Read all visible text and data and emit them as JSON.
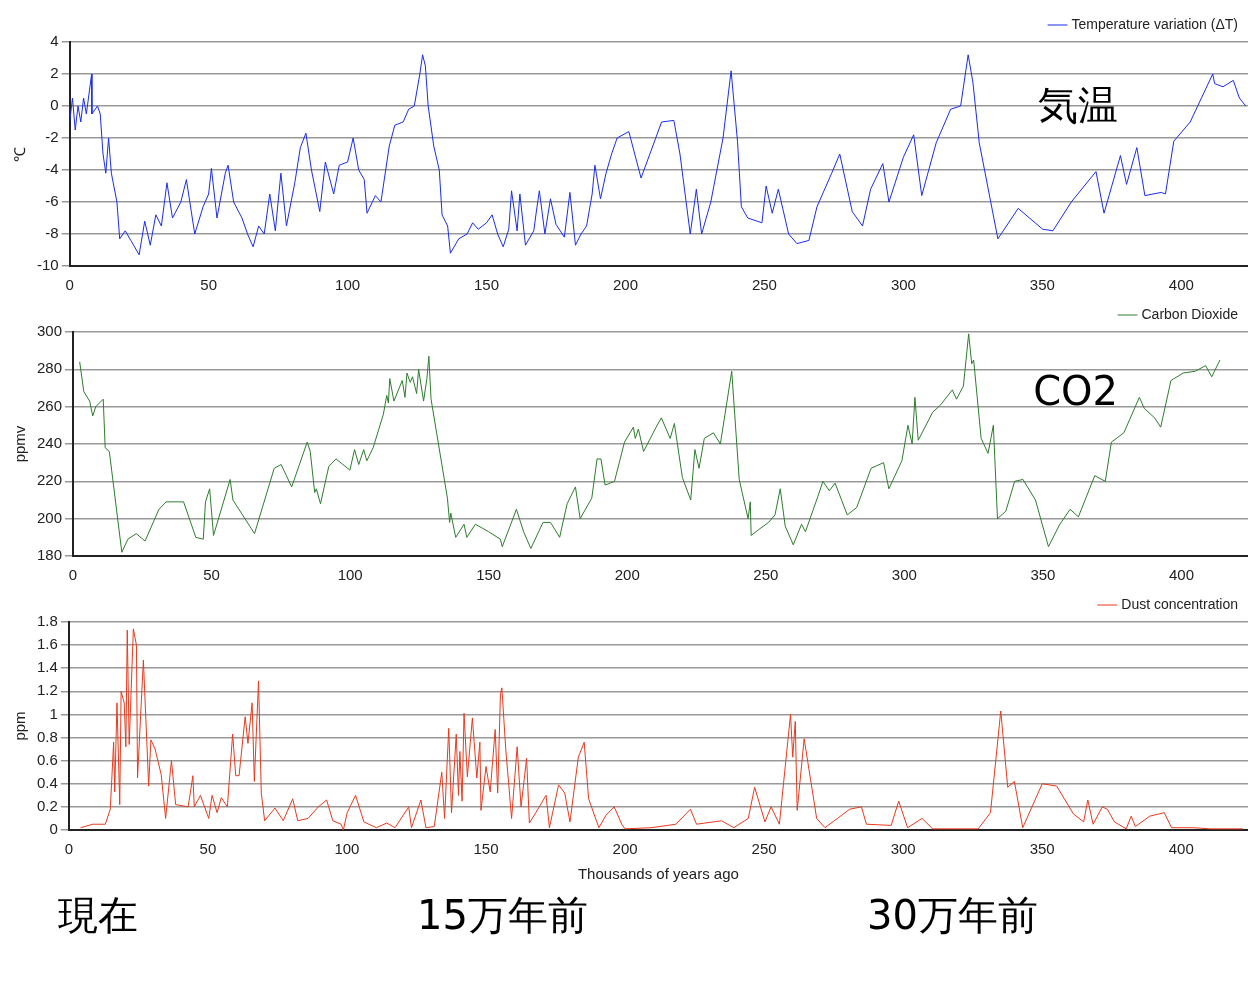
{
  "chart_data": [
    {
      "type": "line",
      "ylabel": "℃",
      "legend": "top right",
      "grid": "y",
      "xlim": [
        0,
        424
      ],
      "xticks": [
        0,
        50,
        100,
        150,
        200,
        250,
        300,
        350,
        400
      ],
      "ylim": [
        -10,
        4
      ],
      "yticks": [
        -10,
        -8,
        -6,
        -4,
        -2,
        0,
        2,
        4
      ],
      "annotations": [
        "気温"
      ],
      "x": [
        0,
        1,
        2,
        3,
        4,
        5,
        6,
        7.9,
        8,
        10,
        11,
        12,
        13,
        14,
        15,
        17,
        18,
        20,
        22,
        25,
        27,
        29,
        31,
        33,
        35,
        37,
        40,
        42,
        45,
        48,
        50,
        51,
        53,
        56,
        57,
        59,
        62,
        64,
        66,
        68,
        70,
        72,
        74,
        76,
        78,
        81,
        83,
        85,
        87,
        90,
        92,
        95,
        97,
        100,
        102,
        104,
        106,
        107,
        110,
        112,
        115,
        117,
        120,
        122,
        124,
        126,
        127,
        128,
        129,
        131,
        133,
        134,
        136,
        137,
        140,
        143,
        145,
        147,
        150,
        152,
        154,
        156,
        158,
        159,
        161,
        162,
        164,
        167,
        168,
        169,
        171,
        173,
        175,
        178,
        180,
        182,
        184,
        186,
        188,
        189,
        191,
        193,
        195,
        197,
        201.2,
        205.6,
        213,
        217.4,
        219.6,
        223.3,
        225.5,
        227.4,
        230.7,
        235.1,
        238,
        240.3,
        241.7,
        244,
        249.1,
        250.6,
        252.8,
        255,
        258.7,
        261.7,
        266,
        268.9,
        274.2,
        277.1,
        281.6,
        285.3,
        288.2,
        292.6,
        294.8,
        300,
        303.7,
        306.6,
        311.8,
        317,
        320.6,
        323.3,
        325,
        327.3,
        334,
        341.3,
        350.1,
        353.8,
        360.4,
        369.3,
        372.2,
        378.1,
        380.3,
        384,
        386.9,
        392.8,
        394.3,
        397.3,
        403.2,
        411.3,
        412,
        415,
        418.7,
        420.9,
        423.2
      ],
      "series": [
        {
          "name": "Temperature variation (ΔT)",
          "color": "#1a2cf0",
          "values": [
            -1,
            0.5,
            -1.5,
            0,
            -1,
            0.5,
            -0.5,
            2,
            -0.5,
            0,
            -0.5,
            -3,
            -4.2,
            -2,
            -4.2,
            -6,
            -8.3,
            -7.8,
            -8.4,
            -9.3,
            -7.2,
            -8.7,
            -6.8,
            -7.5,
            -4.8,
            -7,
            -6,
            -4.6,
            -8,
            -6.3,
            -5.5,
            -3.9,
            -7,
            -4.2,
            -3.7,
            -6,
            -7,
            -8,
            -8.8,
            -7.5,
            -8,
            -5.5,
            -7.8,
            -4.2,
            -7.5,
            -4.8,
            -2.6,
            -1.7,
            -4,
            -6.6,
            -3.5,
            -5.5,
            -3.7,
            -3.5,
            -2,
            -4,
            -4.6,
            -6.7,
            -5.6,
            -6,
            -2.5,
            -1.2,
            -1,
            -0.2,
            0,
            2,
            3.2,
            2.5,
            0,
            -2.5,
            -4,
            -6.8,
            -7.5,
            -9.2,
            -8.3,
            -8,
            -7.3,
            -7.7,
            -7.3,
            -6.8,
            -8,
            -8.8,
            -7.7,
            -5.3,
            -7.8,
            -5.5,
            -8.7,
            -7.8,
            -6.5,
            -5.3,
            -8,
            -5.8,
            -7.4,
            -8.2,
            -5.4,
            -8.7,
            -8,
            -7.5,
            -5.5,
            -3.7,
            -5.8,
            -4.2,
            -3,
            -2,
            -1.6,
            -4.5,
            -1,
            -0.9,
            -3,
            -8,
            -5.2,
            -8,
            -6,
            -2,
            2.2,
            -2.2,
            -6.3,
            -7,
            -7.3,
            -5,
            -6.7,
            -5.2,
            -8,
            -8.6,
            -8.4,
            -6.3,
            -4.2,
            -3,
            -6.6,
            -7.5,
            -5.2,
            -3.6,
            -6,
            -3.2,
            -1.8,
            -5.6,
            -2.3,
            -0.2,
            0,
            3.2,
            1.5,
            -2.3,
            -8.3,
            -6.4,
            -7.7,
            -7.8,
            -6,
            -4.1,
            -6.7,
            -3.1,
            -4.9,
            -2.6,
            -5.6,
            -5.4,
            -5.5,
            -2.2,
            -1,
            2,
            1.4,
            1.2,
            1.6,
            0.5,
            0
          ]
        }
      ]
    },
    {
      "type": "line",
      "ylabel": "ppmv",
      "legend": "top right",
      "grid": "y",
      "xlim": [
        0,
        424
      ],
      "xticks": [
        0,
        50,
        100,
        150,
        200,
        250,
        300,
        350,
        400
      ],
      "ylim": [
        180,
        300
      ],
      "yticks": [
        180,
        200,
        220,
        240,
        260,
        280,
        300
      ],
      "annotations": [
        "CO2"
      ],
      "x": [
        2.4,
        3.9,
        6,
        7.1,
        8.2,
        10.9,
        11.6,
        13.1,
        17.6,
        19.8,
        22.8,
        26,
        31,
        33.6,
        39.9,
        44.3,
        47,
        47.8,
        49.3,
        50.7,
        56.7,
        57.7,
        65.5,
        72.6,
        75.1,
        78.9,
        84.5,
        85.6,
        87.2,
        87.8,
        89.3,
        92.3,
        94.9,
        99.9,
        101.6,
        103.1,
        104.9,
        106,
        108.3,
        112,
        113.2,
        113.8,
        114.3,
        115.8,
        118.8,
        119.8,
        120.5,
        121.7,
        122.5,
        124,
        124.7,
        126.5,
        127.7,
        128.4,
        129.2,
        135.1,
        135.9,
        136.3,
        138.1,
        141.1,
        142.1,
        145.2,
        150,
        154.2,
        154.9,
        160,
        162.6,
        165.2,
        169.6,
        172.3,
        175.6,
        178.3,
        181.3,
        183,
        187.2,
        189.1,
        190.5,
        192,
        195.4,
        199,
        202.2,
        202.9,
        204,
        205.9,
        210.4,
        212.3,
        215.5,
        217,
        219.9,
        222.9,
        224.4,
        225.9,
        227.8,
        231.1,
        233.6,
        237.7,
        240.4,
        243.6,
        244.4,
        244.7,
        247.3,
        251,
        253.3,
        255.2,
        257,
        259.9,
        262.9,
        264.3,
        268.8,
        270.6,
        272.9,
        275,
        279.4,
        282.8,
        288,
        292.5,
        294.4,
        299.1,
        301.3,
        302.8,
        303.8,
        305,
        310.2,
        313.1,
        317.3,
        318.8,
        321.3,
        323.2,
        324.3,
        325,
        327.7,
        330.2,
        332.1,
        333.6,
        336.6,
        339.8,
        342.8,
        347.3,
        352,
        356.1,
        359.8,
        362.8,
        368.7,
        372.5,
        374.7,
        379.2,
        384.8,
        386.6,
        390.3,
        392.5,
        396.2,
        400.6,
        405,
        408.7,
        410.9,
        413.9
      ],
      "series": [
        {
          "name": "Carbon Dioxide",
          "color": "#2e7d2e",
          "values": [
            284,
            268,
            263,
            255,
            260,
            264,
            238,
            236,
            182,
            189,
            192,
            188,
            205,
            209,
            209,
            190,
            189,
            209,
            216,
            191,
            221,
            210,
            192,
            227,
            229,
            217,
            241,
            236,
            214,
            216,
            208,
            228,
            232,
            226,
            237,
            229,
            237,
            231,
            238,
            256,
            266,
            262,
            275,
            263,
            274,
            265,
            278,
            273,
            276,
            267,
            280,
            263,
            275,
            287,
            264,
            211,
            198,
            203,
            190,
            197,
            190,
            197,
            193,
            189,
            185,
            205,
            193,
            184,
            198,
            198,
            190,
            208,
            217,
            200,
            211,
            232,
            232,
            218,
            220,
            241,
            249,
            243,
            248,
            236,
            249,
            254,
            243,
            251,
            222,
            210,
            237,
            227,
            243,
            246,
            240,
            279,
            221,
            200,
            209,
            191,
            194,
            198,
            202,
            216,
            196,
            186,
            197,
            193,
            212,
            220,
            215,
            219,
            202,
            206,
            227,
            230,
            216,
            231,
            250,
            240,
            265,
            242,
            257,
            261,
            269,
            264,
            271,
            299,
            283,
            285,
            243,
            235,
            250,
            200,
            204,
            220,
            221,
            210,
            185,
            197,
            205,
            201,
            223,
            220,
            241,
            246,
            265,
            259,
            254,
            249,
            274,
            278,
            279,
            282,
            276,
            285
          ]
        }
      ]
    },
    {
      "type": "line",
      "ylabel": "ppm",
      "xlabel": "Thousands of years ago",
      "legend": "top right",
      "grid": "y",
      "xlim": [
        0,
        424
      ],
      "xticks": [
        0,
        50,
        100,
        150,
        200,
        250,
        300,
        350,
        400
      ],
      "ylim": [
        0,
        1.8
      ],
      "yticks": [
        0,
        0.2,
        0.4,
        0.6,
        0.8,
        1,
        1.2,
        1.4,
        1.6,
        1.8
      ],
      "annotations": [
        "現在",
        "15万年前",
        "30万年前"
      ],
      "x": [
        4.2,
        8.6,
        13.1,
        14.9,
        16.1,
        16.5,
        17.3,
        18.3,
        18.8,
        19.9,
        20.5,
        21,
        21.7,
        23.2,
        24.3,
        24.7,
        26.8,
        28.7,
        29.5,
        31,
        33.2,
        34.8,
        36.9,
        38.4,
        42.9,
        44.6,
        45.1,
        47.3,
        50.3,
        51.5,
        53.3,
        54.8,
        57,
        58.9,
        60,
        61.2,
        63.4,
        64.4,
        65.9,
        66.7,
        68.2,
        69.2,
        70.4,
        74.1,
        77.1,
        80.5,
        82.3,
        86,
        89.7,
        92.7,
        94.9,
        97.9,
        98.7,
        100.1,
        103.1,
        106.1,
        110.6,
        114.3,
        117.3,
        122.2,
        123.2,
        126.6,
        128.4,
        131.4,
        134.1,
        135.1,
        136.6,
        137.6,
        139.3,
        140.1,
        140.6,
        141.4,
        142.1,
        143.3,
        145.1,
        146.7,
        147.8,
        148.2,
        150,
        151.5,
        153.3,
        154.2,
        155.2,
        155.7,
        157.1,
        159.2,
        161.2,
        162.6,
        164.6,
        165.6,
        167.9,
        171.6,
        172.8,
        176.1,
        178.3,
        180.2,
        183.2,
        185.3,
        186.9,
        190.6,
        193.2,
        196.1,
        198.8,
        200,
        209.4,
        218.3,
        223.5,
        225.7,
        234.7,
        239.1,
        244.3,
        246.6,
        250.3,
        252.5,
        255.5,
        259.5,
        260.3,
        261.2,
        261.9,
        264.4,
        268.9,
        271.9,
        280.8,
        285,
        286.8,
        295.7,
        298.4,
        301.6,
        306.8,
        310.6,
        322.5,
        327,
        331.4,
        335.1,
        337.6,
        340,
        343,
        350,
        355.2,
        361.2,
        364.9,
        366.4,
        368.3,
        371.6,
        373.4,
        376,
        380.2,
        382,
        383.5,
        388.7,
        393.9,
        396.5,
        404.3,
        410.3,
        422.2
      ],
      "series": [
        {
          "name": "Dust concentration",
          "color": "#e83a1e",
          "values": [
            0.02,
            0.05,
            0.05,
            0.18,
            0.76,
            0.33,
            1.1,
            0.22,
            1.2,
            1.1,
            0.72,
            1.73,
            0.74,
            1.74,
            1.6,
            0.45,
            1.47,
            0.38,
            0.78,
            0.7,
            0.48,
            0.1,
            0.6,
            0.22,
            0.2,
            0.47,
            0.2,
            0.3,
            0.1,
            0.3,
            0.15,
            0.28,
            0.2,
            0.83,
            0.47,
            0.47,
            0.98,
            0.75,
            1.1,
            0.42,
            1.29,
            0.32,
            0.08,
            0.19,
            0.08,
            0.27,
            0.08,
            0.1,
            0.2,
            0.26,
            0.08,
            0.05,
            0,
            0.15,
            0.3,
            0.07,
            0.02,
            0.06,
            0.02,
            0.2,
            0.02,
            0.26,
            0.02,
            0.03,
            0.5,
            0.1,
            0.88,
            0.15,
            0.83,
            0.3,
            0.68,
            0.25,
            1.01,
            0.46,
            0.97,
            0.45,
            0.76,
            0.17,
            0.55,
            0.33,
            0.87,
            0.32,
            1.18,
            1.23,
            0.7,
            0.1,
            0.72,
            0.2,
            0.62,
            0.06,
            0.15,
            0.3,
            0.02,
            0.39,
            0.32,
            0.07,
            0.63,
            0.76,
            0.27,
            0.02,
            0.13,
            0.2,
            0.05,
            0.01,
            0.02,
            0.05,
            0.18,
            0.05,
            0.08,
            0.02,
            0.1,
            0.37,
            0.07,
            0.2,
            0.05,
            1,
            0.63,
            0.94,
            0.17,
            0.79,
            0.1,
            0.02,
            0.18,
            0.2,
            0.05,
            0.04,
            0.25,
            0.02,
            0.1,
            0.01,
            0.01,
            0.01,
            0.15,
            1.03,
            0.37,
            0.42,
            0.02,
            0.4,
            0.38,
            0.14,
            0.07,
            0.26,
            0.05,
            0.2,
            0.18,
            0.07,
            0.01,
            0.12,
            0.03,
            0.12,
            0.15,
            0.02,
            0.02,
            0.01,
            0.01
          ]
        }
      ]
    }
  ]
}
